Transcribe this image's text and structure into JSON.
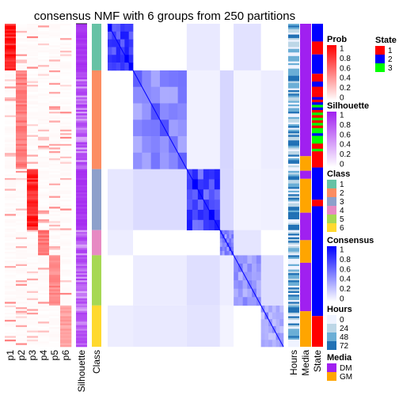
{
  "chart_data": {
    "type": "heatmap",
    "title": "consensus NMF with 6 groups from 250 partitions",
    "prob_columns": [
      "p1",
      "p2",
      "p3",
      "p4",
      "p5",
      "p6"
    ],
    "annotation_columns_left": [
      "Silhouette",
      "Class"
    ],
    "annotation_columns_right": [
      "Hours",
      "Media",
      "State"
    ],
    "class_blocks": [
      {
        "class": "1",
        "fraction": 0.146
      },
      {
        "class": "2",
        "fraction": 0.308
      },
      {
        "class": "3",
        "fraction": 0.187
      },
      {
        "class": "4",
        "fraction": 0.079
      },
      {
        "class": "5",
        "fraction": 0.154
      },
      {
        "class": "6",
        "fraction": 0.126
      }
    ],
    "class_prob_column": {
      "1": 0,
      "2": 1,
      "3": 2,
      "4": 3,
      "5": 4,
      "6": 5
    },
    "state_blocks": [
      {
        "state": "2",
        "fraction": 0.055
      },
      {
        "state": "1",
        "fraction": 0.04
      },
      {
        "state": "2",
        "fraction": 0.06
      },
      {
        "state": "mixed",
        "fraction": 0.24
      },
      {
        "state": "1",
        "fraction": 0.05
      },
      {
        "state": "2",
        "fraction": 0.1
      },
      {
        "state": "1",
        "fraction": 0.02
      },
      {
        "state": "2",
        "fraction": 0.34
      },
      {
        "state": "1",
        "fraction": 0.095
      }
    ],
    "media_blocks": [
      {
        "media": "DM",
        "fraction": 0.41
      },
      {
        "media": "GM",
        "fraction": 0.045
      },
      {
        "media": "DM",
        "fraction": 0.025
      },
      {
        "media": "GM",
        "fraction": 0.105
      },
      {
        "media": "DM",
        "fraction": 0.085
      },
      {
        "media": "GM",
        "fraction": 0.07
      },
      {
        "media": "DM",
        "fraction": 0.15
      },
      {
        "media": "GM",
        "fraction": 0.11
      }
    ],
    "legends": {
      "prob": {
        "title": "Prob",
        "ticks": [
          "1",
          "0.8",
          "0.6",
          "0.4",
          "0.2",
          "0"
        ]
      },
      "silhouette": {
        "title": "Silhouette",
        "ticks": [
          "1",
          "0.8",
          "0.6",
          "0.4",
          "0.2",
          "0"
        ]
      },
      "class": {
        "title": "Class",
        "items": [
          {
            "label": "1",
            "color": "#66C2A5"
          },
          {
            "label": "2",
            "color": "#FC8D62"
          },
          {
            "label": "3",
            "color": "#8DA0CB"
          },
          {
            "label": "4",
            "color": "#E78AC3"
          },
          {
            "label": "5",
            "color": "#A6D854"
          },
          {
            "label": "6",
            "color": "#FFD92F"
          }
        ]
      },
      "consensus": {
        "title": "Consensus",
        "ticks": [
          "1",
          "0.8",
          "0.6",
          "0.4",
          "0.2",
          "0"
        ]
      },
      "hours": {
        "title": "Hours",
        "items": [
          {
            "label": "0",
            "color": "#EFF3FF"
          },
          {
            "label": "24",
            "color": "#BDD7E7"
          },
          {
            "label": "48",
            "color": "#6BAED6"
          },
          {
            "label": "72",
            "color": "#2171B5"
          }
        ]
      },
      "media": {
        "title": "Media",
        "items": [
          {
            "label": "DM",
            "color": "#A020F0"
          },
          {
            "label": "GM",
            "color": "#FFA500"
          }
        ]
      },
      "state": {
        "title": "State",
        "items": [
          {
            "label": "1",
            "color": "#FF0000"
          },
          {
            "label": "2",
            "color": "#0000FF"
          },
          {
            "label": "3",
            "color": "#00FF00"
          }
        ]
      }
    },
    "colors": {
      "prob_high": "#FF0000",
      "silhouette_high": "#A020F0",
      "consensus_high": "#0000FF",
      "low": "#FFFFFF"
    }
  }
}
